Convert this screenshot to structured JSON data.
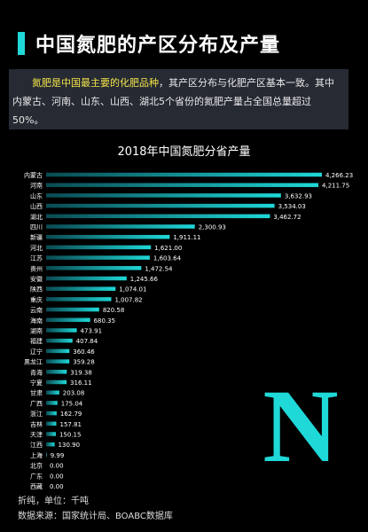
{
  "header": {
    "title": "中国氮肥的产区分布及产量"
  },
  "intro": {
    "highlight": "氮肥是中国最主要的化肥品种",
    "rest": "，其产区分布与化肥产区基本一致。其中内蒙古、河南、山东、山西、湖北5个省份的氮肥产量占全国总量超过50%。"
  },
  "chart_data": {
    "type": "bar",
    "orientation": "horizontal",
    "title": "2018年中国氮肥分省产量",
    "categories": [
      "内蒙古",
      "河南",
      "山东",
      "山西",
      "湖北",
      "四川",
      "新疆",
      "河北",
      "江苏",
      "贵州",
      "安徽",
      "陕西",
      "重庆",
      "云南",
      "海南",
      "湖南",
      "福建",
      "辽宁",
      "黑龙江",
      "青海",
      "宁夏",
      "甘肃",
      "广西",
      "浙江",
      "吉林",
      "天津",
      "江西",
      "上海",
      "北京",
      "广东",
      "西藏"
    ],
    "values": [
      4266.23,
      4211.75,
      3632.93,
      3534.03,
      3462.72,
      2300.93,
      1911.11,
      1621.0,
      1603.64,
      1472.54,
      1245.66,
      1074.01,
      1007.82,
      820.58,
      680.35,
      473.91,
      407.84,
      360.46,
      359.28,
      319.38,
      316.11,
      203.08,
      175.04,
      162.79,
      157.81,
      150.15,
      130.9,
      9.99,
      0.0,
      0.0,
      0.0
    ],
    "labels": [
      "4,266.23",
      "4,211.75",
      "3,632.93",
      "3,534.03",
      "3,462.72",
      "2,300.93",
      "1,911.11",
      "1,621.00",
      "1,603.64",
      "1,472.54",
      "1,245.66",
      "1,074.01",
      "1,007.82",
      "820.58",
      "680.35",
      "473.91",
      "407.84",
      "360.46",
      "359.28",
      "319.38",
      "316.11",
      "203.08",
      "175.04",
      "162.79",
      "157.81",
      "150.15",
      "130.90",
      "9.99",
      "0.00",
      "0.00",
      "0.00"
    ],
    "bar_color": "#1fd8d8"
  },
  "footer": {
    "unit": "折纯，单位：千吨",
    "source": "数据来源：国家统计局、BOABC数据库"
  },
  "logo": {
    "letter": "N",
    "color": "#1fd8d8"
  }
}
